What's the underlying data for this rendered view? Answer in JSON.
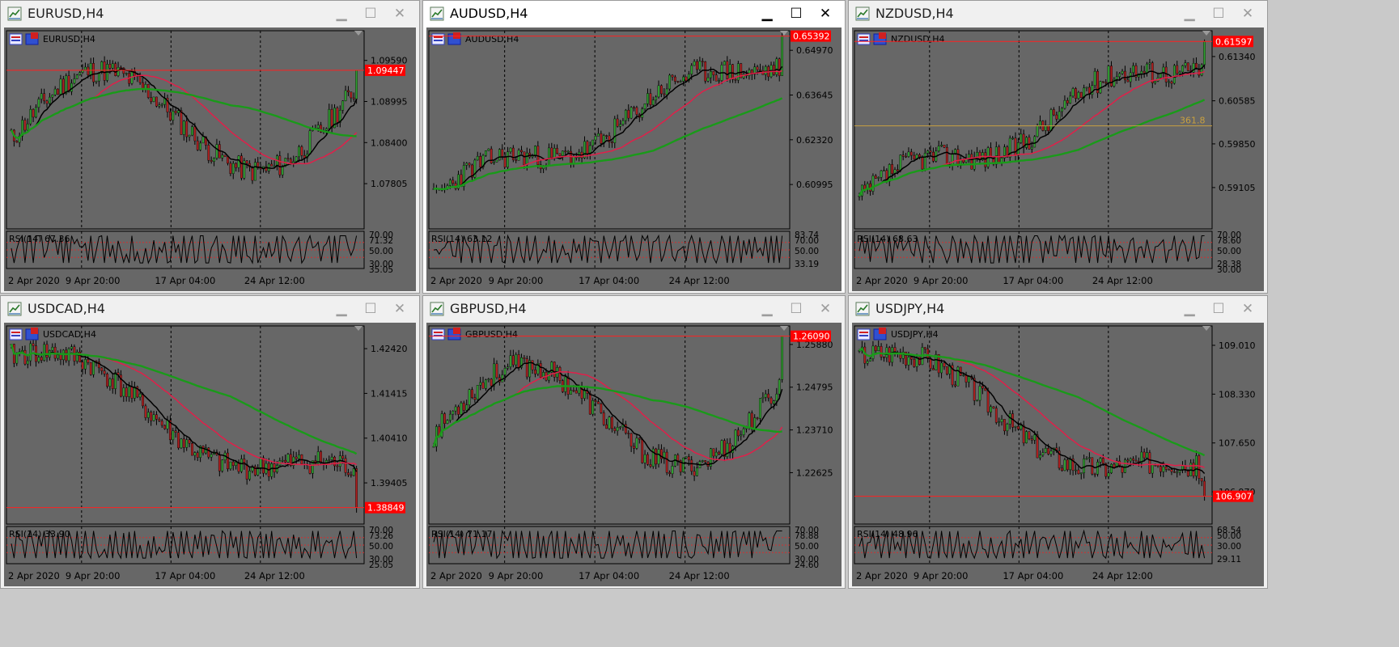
{
  "windows": [
    {
      "title": "EURUSD,H4",
      "symbol_label": "EURUSD,H4",
      "active": false,
      "min": "▁",
      "max": "☐",
      "close": "✕",
      "prices": [
        "1.09590",
        "1.08995",
        "1.08400",
        "1.07805"
      ],
      "price_min": 1.0715,
      "price_max": 1.1002,
      "current_price": "1.09447",
      "current_value": 1.09447,
      "rsi_label": "RSI(14) 67.36",
      "rsi_ticks": [
        "70.00",
        "71.32",
        "50.00",
        "30.00",
        "35.05"
      ],
      "dates": [
        "2 Apr 2020",
        "9 Apr 20:00",
        "17 Apr 04:00",
        "24 Apr 12:00"
      ],
      "fib_label": "",
      "seed": 11,
      "trend": "updown_up"
    },
    {
      "title": "AUDUSD,H4",
      "symbol_label": "AUDUSD,H4",
      "active": true,
      "min": "▁",
      "max": "☐",
      "close": "✕",
      "prices": [
        "0.64970",
        "0.63645",
        "0.62320",
        "0.60995"
      ],
      "price_min": 0.5968,
      "price_max": 0.6555,
      "current_price": "0.65392",
      "current_value": 0.65392,
      "rsi_label": "RSI(14) 63.12",
      "rsi_ticks": [
        "83.74",
        "70.00",
        "50.00",
        "33.19"
      ],
      "dates": [
        "2 Apr 2020",
        "9 Apr 20:00",
        "17 Apr 04:00",
        "24 Apr 12:00"
      ],
      "fib_label": "",
      "seed": 23,
      "trend": "up"
    },
    {
      "title": "NZDUSD,H4",
      "symbol_label": "NZDUSD,H4",
      "active": false,
      "min": "▁",
      "max": "☐",
      "close": "✕",
      "prices": [
        "0.61340",
        "0.60585",
        "0.59850",
        "0.59105"
      ],
      "price_min": 0.584,
      "price_max": 0.6178,
      "current_price": "0.61597",
      "current_value": 0.61597,
      "rsi_label": "RSI(14) 68.63",
      "rsi_ticks": [
        "70.00",
        "78.60",
        "50.00",
        "28.38",
        "30.00"
      ],
      "dates": [
        "2 Apr 2020",
        "9 Apr 20:00",
        "17 Apr 04:00",
        "24 Apr 12:00"
      ],
      "fib_label": "361.8",
      "seed": 37,
      "trend": "up"
    },
    {
      "title": "USDCAD,H4",
      "symbol_label": "USDCAD,H4",
      "active": false,
      "min": "▁",
      "max": "☐",
      "close": "✕",
      "prices": [
        "1.42420",
        "1.41415",
        "1.40410",
        "1.39405"
      ],
      "price_min": 1.3848,
      "price_max": 1.4293,
      "current_price": "1.38849",
      "current_value": 1.38849,
      "rsi_label": "RSI(14) 33.90",
      "rsi_ticks": [
        "70.00",
        "73.26",
        "50.00",
        "30.00",
        "25.05"
      ],
      "dates": [
        "2 Apr 2020",
        "9 Apr 20:00",
        "17 Apr 04:00",
        "24 Apr 12:00"
      ],
      "fib_label": "",
      "seed": 41,
      "trend": "down"
    },
    {
      "title": "GBPUSD,H4",
      "symbol_label": "GBPUSD,H4",
      "active": false,
      "min": "▁",
      "max": "☐",
      "close": "✕",
      "prices": [
        "1.25880",
        "1.24795",
        "1.23710",
        "1.22625"
      ],
      "price_min": 1.2132,
      "price_max": 1.2635,
      "current_price": "1.26090",
      "current_value": 1.2609,
      "rsi_label": "RSI(14) 71.17",
      "rsi_ticks": [
        "70.00",
        "78.88",
        "50.00",
        "30.00",
        "24.60"
      ],
      "dates": [
        "2 Apr 2020",
        "9 Apr 20:00",
        "17 Apr 04:00",
        "24 Apr 12:00"
      ],
      "fib_label": "",
      "seed": 53,
      "trend": "updown_up"
    },
    {
      "title": "USDJPY,H4",
      "symbol_label": "USDJPY,H4",
      "active": false,
      "min": "▁",
      "max": "☐",
      "close": "✕",
      "prices": [
        "109.010",
        "108.330",
        "107.650",
        "106.970"
      ],
      "price_min": 106.52,
      "price_max": 109.28,
      "current_price": "106.907",
      "current_value": 106.907,
      "rsi_label": "RSI(14) 48.96",
      "rsi_ticks": [
        "68.54",
        "50.00",
        "30.00",
        "29.11"
      ],
      "dates": [
        "2 Apr 2020",
        "9 Apr 20:00",
        "17 Apr 04:00",
        "24 Apr 12:00"
      ],
      "fib_label": "",
      "seed": 67,
      "trend": "down"
    }
  ],
  "colors": {
    "chart_bg": "#676767",
    "bull": "#32a032",
    "bear": "#b02020",
    "ma_fast": "#000000",
    "ma_mid": "#e0204a",
    "ma_slow": "#1a9a1a",
    "price_line": "#ff2020",
    "price_tag": "#ff0000",
    "grid": "#000000",
    "fib": "#c8a040"
  },
  "icons": {
    "app": "chart-app-icon",
    "template": "template-icon",
    "menu": "menu-icon",
    "minimize": "minimize-icon",
    "maximize": "maximize-icon",
    "close": "close-icon"
  }
}
